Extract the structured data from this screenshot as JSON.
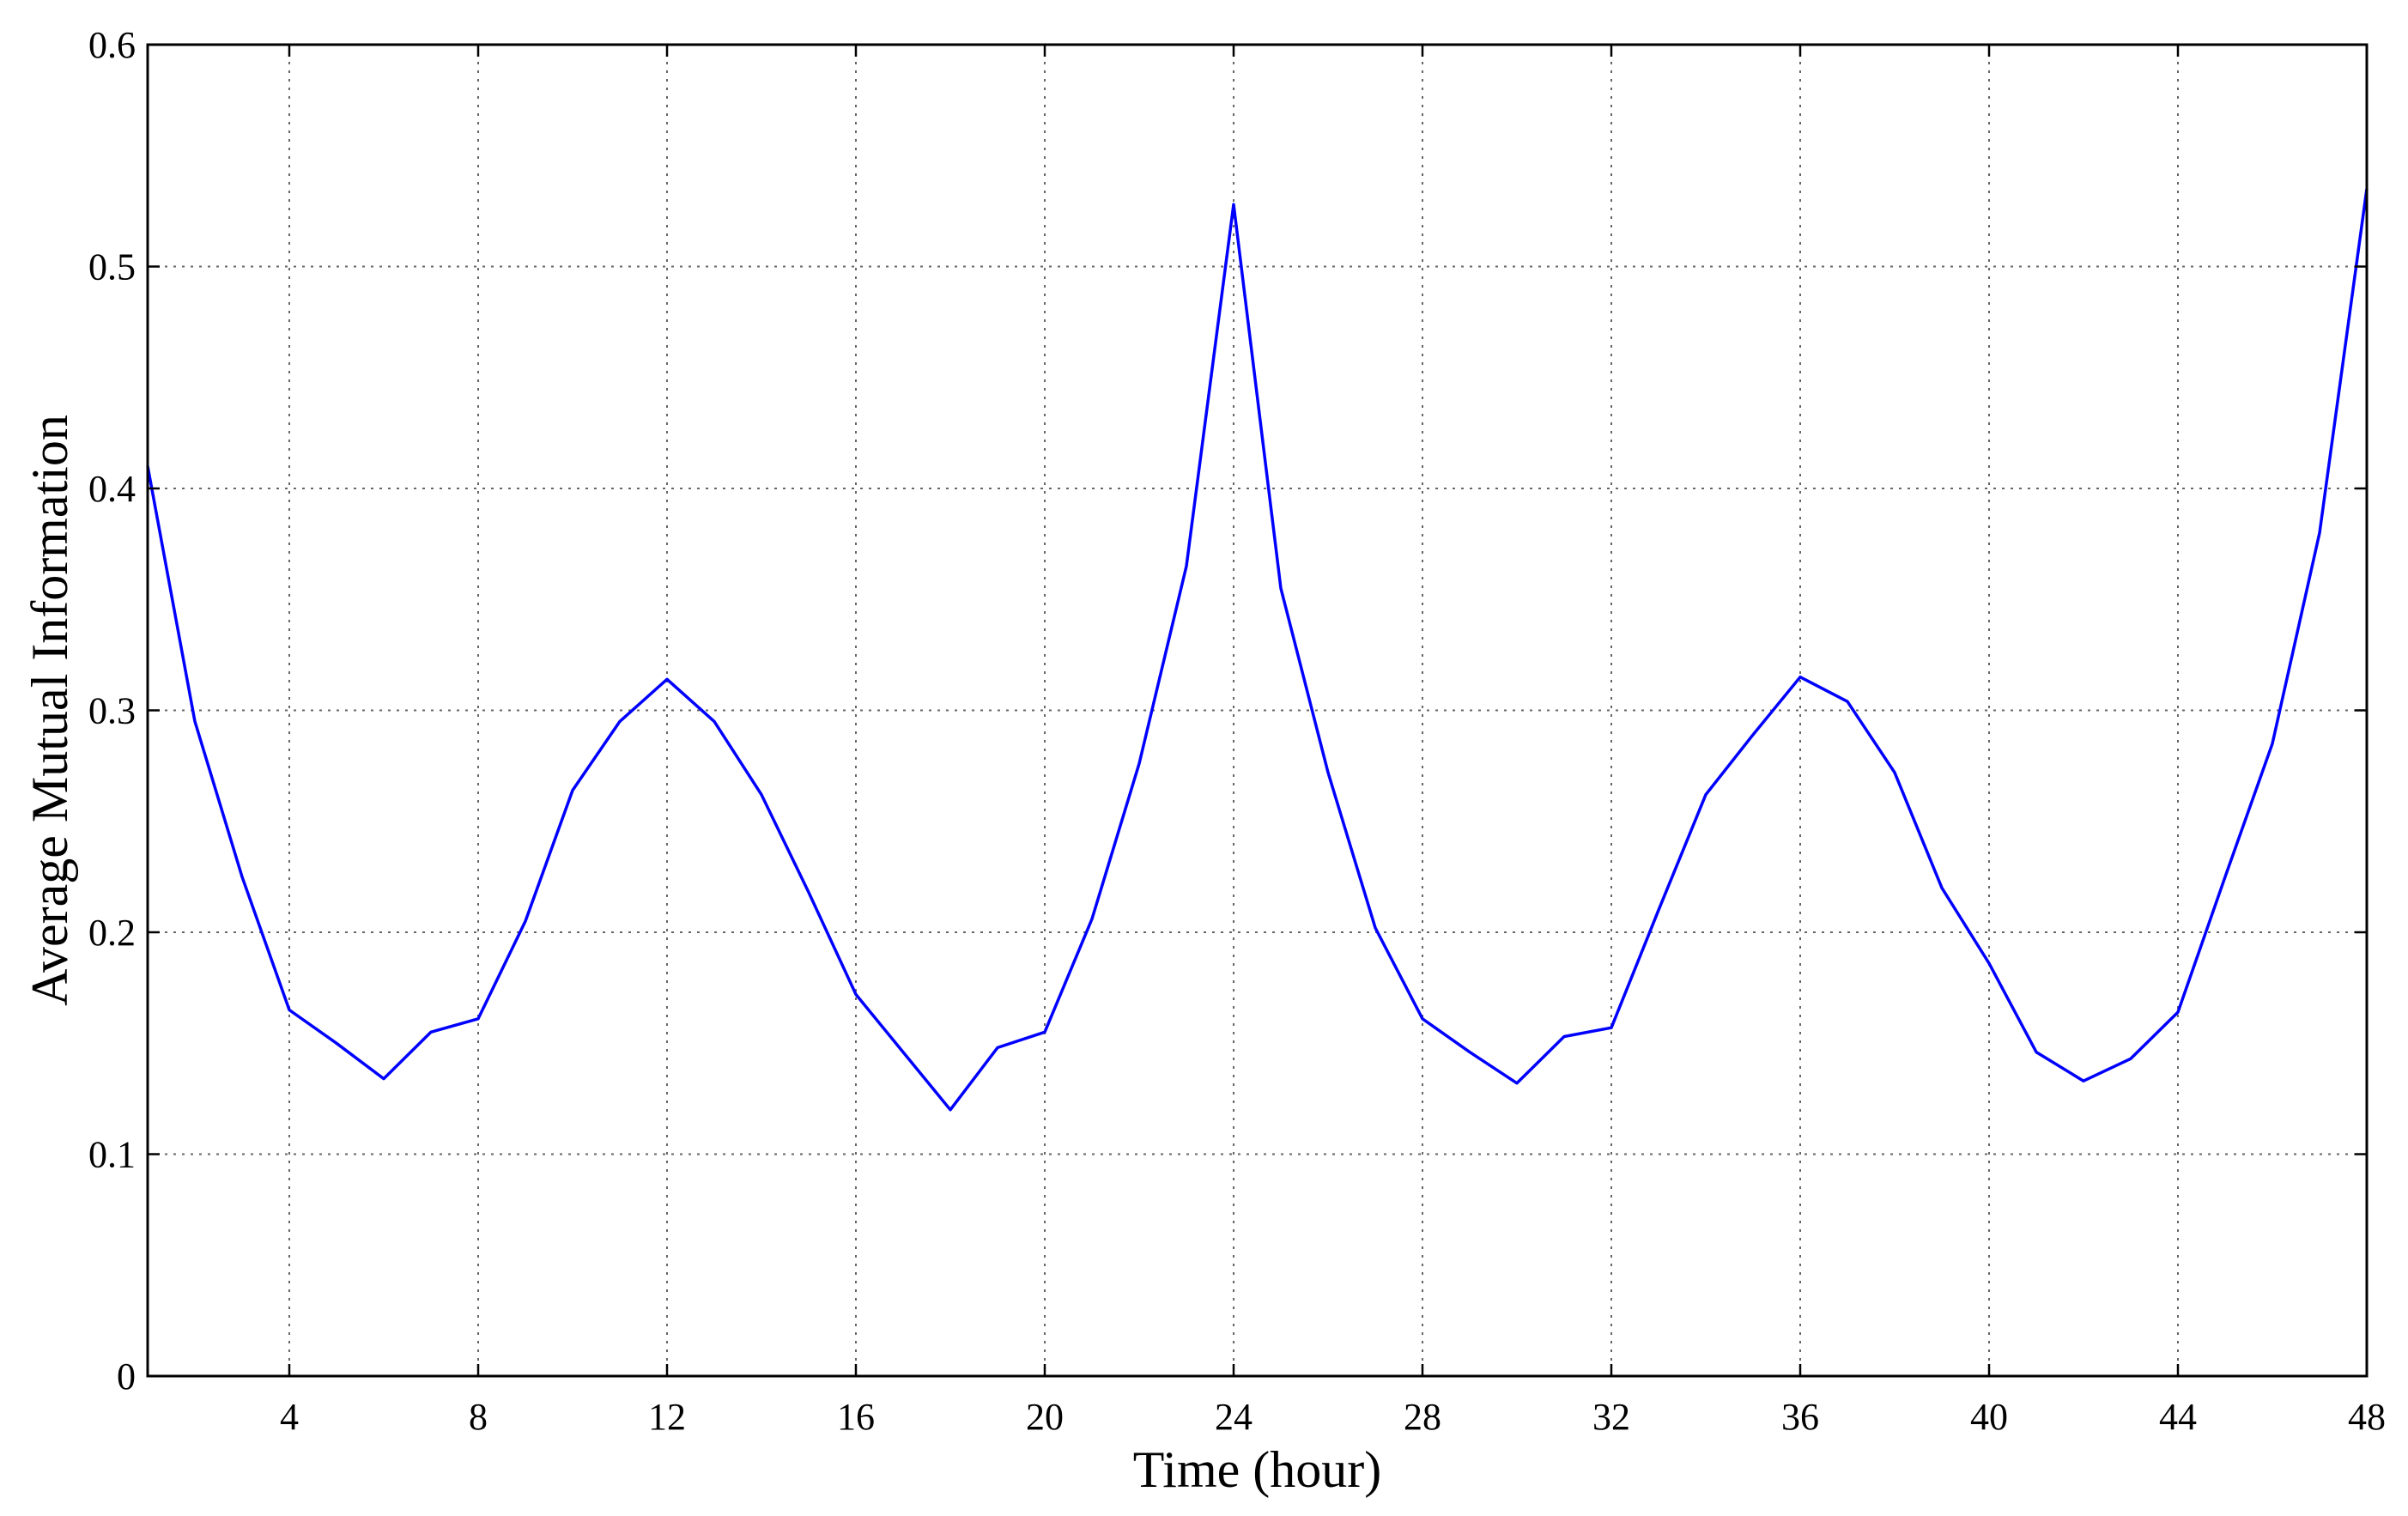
{
  "chart_data": {
    "type": "line",
    "title": "",
    "xlabel": "Time (hour)",
    "ylabel": "Average Mutual Information",
    "xlim": [
      1,
      48
    ],
    "ylim": [
      0,
      0.6
    ],
    "xticks": [
      4,
      8,
      12,
      16,
      20,
      24,
      28,
      32,
      36,
      40,
      44,
      48
    ],
    "yticks": [
      0,
      0.1,
      0.2,
      0.3,
      0.4,
      0.5,
      0.6
    ],
    "ytick_labels": [
      "0",
      "0.1",
      "0.2",
      "0.3",
      "0.4",
      "0.5",
      "0.6"
    ],
    "grid": true,
    "series": [
      {
        "color": "#0000ff",
        "x": [
          1,
          2,
          3,
          4,
          5,
          6,
          7,
          8,
          9,
          10,
          11,
          12,
          13,
          14,
          15,
          16,
          17,
          18,
          19,
          20,
          21,
          22,
          23,
          24,
          25,
          26,
          27,
          28,
          29,
          30,
          31,
          32,
          33,
          34,
          35,
          36,
          37,
          38,
          39,
          40,
          41,
          42,
          43,
          44,
          45,
          46,
          47,
          48
        ],
        "y": [
          0.41,
          0.295,
          0.225,
          0.165,
          0.15,
          0.134,
          0.155,
          0.161,
          0.205,
          0.264,
          0.295,
          0.314,
          0.295,
          0.262,
          0.218,
          0.172,
          0.146,
          0.12,
          0.148,
          0.155,
          0.206,
          0.276,
          0.365,
          0.528,
          0.355,
          0.272,
          0.202,
          0.161,
          0.146,
          0.132,
          0.153,
          0.157,
          0.21,
          0.262,
          0.289,
          0.315,
          0.304,
          0.272,
          0.22,
          0.186,
          0.146,
          0.133,
          0.143,
          0.164,
          0.225,
          0.285,
          0.38,
          0.535
        ]
      }
    ]
  }
}
